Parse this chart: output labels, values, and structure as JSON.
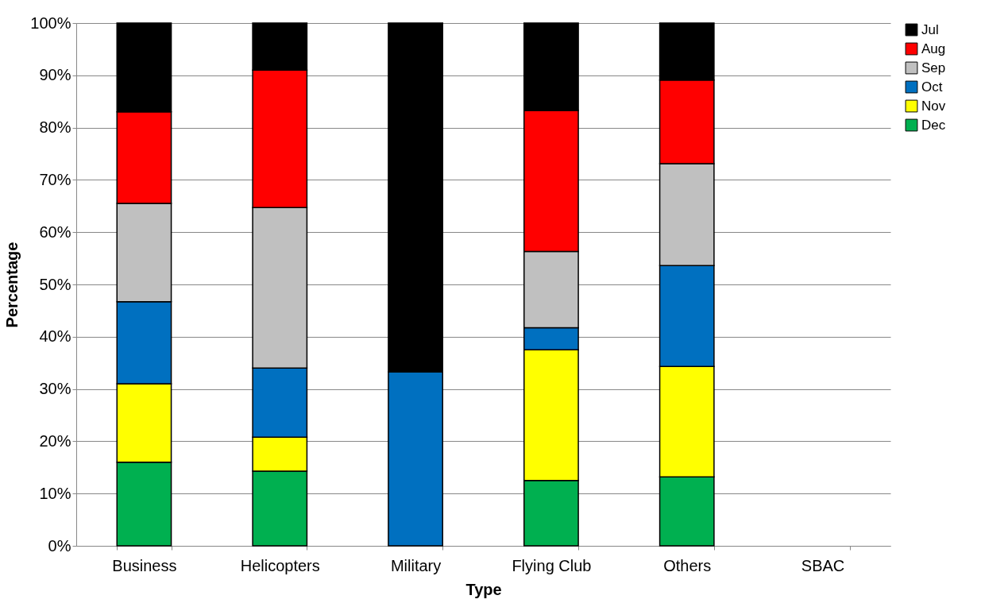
{
  "chart_data": {
    "type": "bar",
    "stacked": true,
    "xlabel": "Type",
    "ylabel": "Percentage",
    "categories": [
      "Business",
      "Helicopters",
      "Military",
      "Flying Club",
      "Others",
      "SBAC"
    ],
    "series": [
      {
        "name": "Dec",
        "color": "#00b050",
        "values": [
          16.0,
          14.3,
          0,
          12.5,
          13.2,
          null
        ]
      },
      {
        "name": "Nov",
        "color": "#ffff00",
        "values": [
          15.0,
          6.5,
          0,
          25.0,
          21.1,
          null
        ]
      },
      {
        "name": "Oct",
        "color": "#0070c0",
        "values": [
          15.7,
          13.2,
          33.3,
          4.2,
          19.3,
          null
        ]
      },
      {
        "name": "Sep",
        "color": "#c0c0c0",
        "values": [
          18.8,
          30.7,
          0,
          14.6,
          19.5,
          null
        ]
      },
      {
        "name": "Aug",
        "color": "#ff0000",
        "values": [
          17.5,
          26.3,
          0,
          27.0,
          16.0,
          null
        ]
      },
      {
        "name": "Jul",
        "color": "#000000",
        "values": [
          17.0,
          9.0,
          66.7,
          16.7,
          10.9,
          null
        ]
      }
    ],
    "ylim": [
      0,
      100
    ],
    "yticks": [
      {
        "value": 0,
        "label": "0%"
      },
      {
        "value": 10,
        "label": "10%"
      },
      {
        "value": 20,
        "label": "20%"
      },
      {
        "value": 30,
        "label": "30%"
      },
      {
        "value": 40,
        "label": "40%"
      },
      {
        "value": 50,
        "label": "50%"
      },
      {
        "value": 60,
        "label": "60%"
      },
      {
        "value": 70,
        "label": "70%"
      },
      {
        "value": 80,
        "label": "80%"
      },
      {
        "value": 90,
        "label": "90%"
      },
      {
        "value": 100,
        "label": "100%"
      }
    ],
    "grid": "y",
    "legend": "right"
  }
}
